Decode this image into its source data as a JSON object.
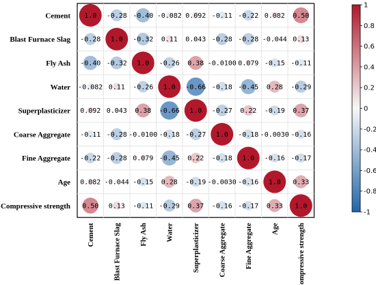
{
  "chart_data": {
    "type": "heatmap",
    "variables": [
      "Cement",
      "Blast Furnace Slag",
      "Fly Ash",
      "Water",
      "Superplasticizer",
      "Coarse Aggregate",
      "Fine Aggregate",
      "Age",
      "Compressive strength"
    ],
    "matrix": [
      [
        1.0,
        -0.28,
        -0.4,
        -0.082,
        0.092,
        -0.11,
        -0.22,
        0.082,
        0.5
      ],
      [
        -0.28,
        1.0,
        -0.32,
        0.11,
        0.043,
        -0.28,
        -0.28,
        -0.044,
        0.13
      ],
      [
        -0.4,
        -0.32,
        1.0,
        -0.26,
        0.38,
        -0.01,
        0.079,
        -0.15,
        -0.11
      ],
      [
        -0.082,
        0.11,
        -0.26,
        1.0,
        -0.66,
        -0.18,
        -0.45,
        0.28,
        -0.29
      ],
      [
        0.092,
        0.043,
        0.38,
        -0.66,
        1.0,
        -0.27,
        0.22,
        -0.19,
        0.37
      ],
      [
        -0.11,
        -0.28,
        -0.01,
        -0.18,
        -0.27,
        1.0,
        -0.18,
        -0.003,
        -0.16
      ],
      [
        -0.22,
        -0.28,
        0.079,
        -0.45,
        0.22,
        -0.18,
        1.0,
        -0.16,
        -0.17
      ],
      [
        0.082,
        -0.044,
        -0.15,
        0.28,
        -0.19,
        -0.003,
        -0.16,
        1.0,
        0.33
      ],
      [
        0.5,
        0.13,
        -0.11,
        -0.29,
        0.37,
        -0.16,
        -0.17,
        0.33,
        1.0
      ]
    ],
    "labels": [
      [
        "1.0",
        "-0.28",
        "-0.40",
        "-0.082",
        "0.092",
        "-0.11",
        "-0.22",
        "0.082",
        "0.50"
      ],
      [
        "-0.28",
        "1.0",
        "-0.32",
        "0.11",
        "0.043",
        "-0.28",
        "-0.28",
        "-0.044",
        "0.13"
      ],
      [
        "-0.40",
        "-0.32",
        "1.0",
        "-0.26",
        "0.38",
        "-0.0100",
        "0.079",
        "-0.15",
        "-0.11"
      ],
      [
        "-0.082",
        "0.11",
        "-0.26",
        "1.0",
        "-0.66",
        "-0.18",
        "-0.45",
        "0.28",
        "-0.29"
      ],
      [
        "0.092",
        "0.043",
        "0.38",
        "-0.66",
        "1.0",
        "-0.27",
        "0.22",
        "-0.19",
        "0.37"
      ],
      [
        "-0.11",
        "-0.28",
        "-0.0100",
        "-0.18",
        "-0.27",
        "1.0",
        "-0.18",
        "-0.0030",
        "-0.16"
      ],
      [
        "-0.22",
        "-0.28",
        "0.079",
        "-0.45",
        "0.22",
        "-0.18",
        "1.0",
        "-0.16",
        "-0.17"
      ],
      [
        "0.082",
        "-0.044",
        "-0.15",
        "0.28",
        "-0.19",
        "-0.0030",
        "-0.16",
        "1.0",
        "0.33"
      ],
      [
        "0.50",
        "0.13",
        "-0.11",
        "-0.29",
        "0.37",
        "-0.16",
        "-0.17",
        "0.33",
        "1.0"
      ]
    ],
    "colorbar": {
      "range": [
        -1,
        1
      ],
      "ticks": [
        "1",
        "0.8",
        "0.6",
        "0.4",
        "0.2",
        "0",
        "-0.2",
        "-0.4",
        "-0.6",
        "-0.8",
        "-1"
      ],
      "colors": {
        "positive": "#b2182b",
        "neutral": "#f7f7f7",
        "negative": "#2166ac"
      }
    },
    "grid": true,
    "title": "",
    "xlabel": "",
    "ylabel": ""
  }
}
